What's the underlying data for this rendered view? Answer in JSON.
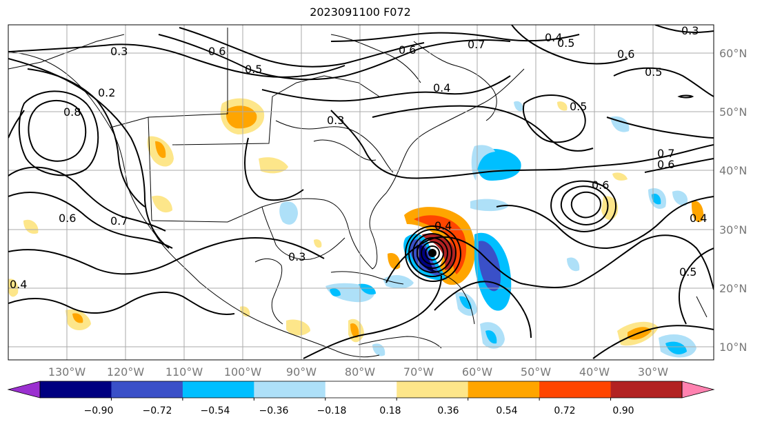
{
  "title": "2023091100 F072",
  "longitude_labels": [
    "130°W",
    "120°W",
    "110°W",
    "100°W",
    "90°W",
    "80°W",
    "70°W",
    "60°W",
    "50°W",
    "40°W",
    "30°W"
  ],
  "latitude_labels": [
    "60°N",
    "50°N",
    "40°N",
    "30°N",
    "20°N",
    "10°N"
  ],
  "contour_labels": [
    "0.3",
    "0.6",
    "0.5",
    "0.7",
    "0.4",
    "0.2",
    "0.8",
    "0.3",
    "0.6",
    "0.7",
    "0.4",
    "0.6",
    "0.5",
    "0.3",
    "0.4",
    "0.6",
    "0.7",
    "0.6",
    "0.4",
    "0.5",
    "0.3",
    "0.4",
    "0.6",
    "0.5",
    "0.5"
  ],
  "colorbar": {
    "ticks": [
      "−0.90",
      "−0.72",
      "−0.54",
      "−0.36",
      "−0.18",
      "0.18",
      "0.36",
      "0.54",
      "0.72",
      "0.90"
    ],
    "colors": [
      "#9b30d0",
      "#000080",
      "#3a50c8",
      "#00bfff",
      "#aee0f8",
      "#ffffff",
      "#fde68a",
      "#ffa500",
      "#ff4500",
      "#b22222",
      "#ff82b0"
    ]
  }
}
